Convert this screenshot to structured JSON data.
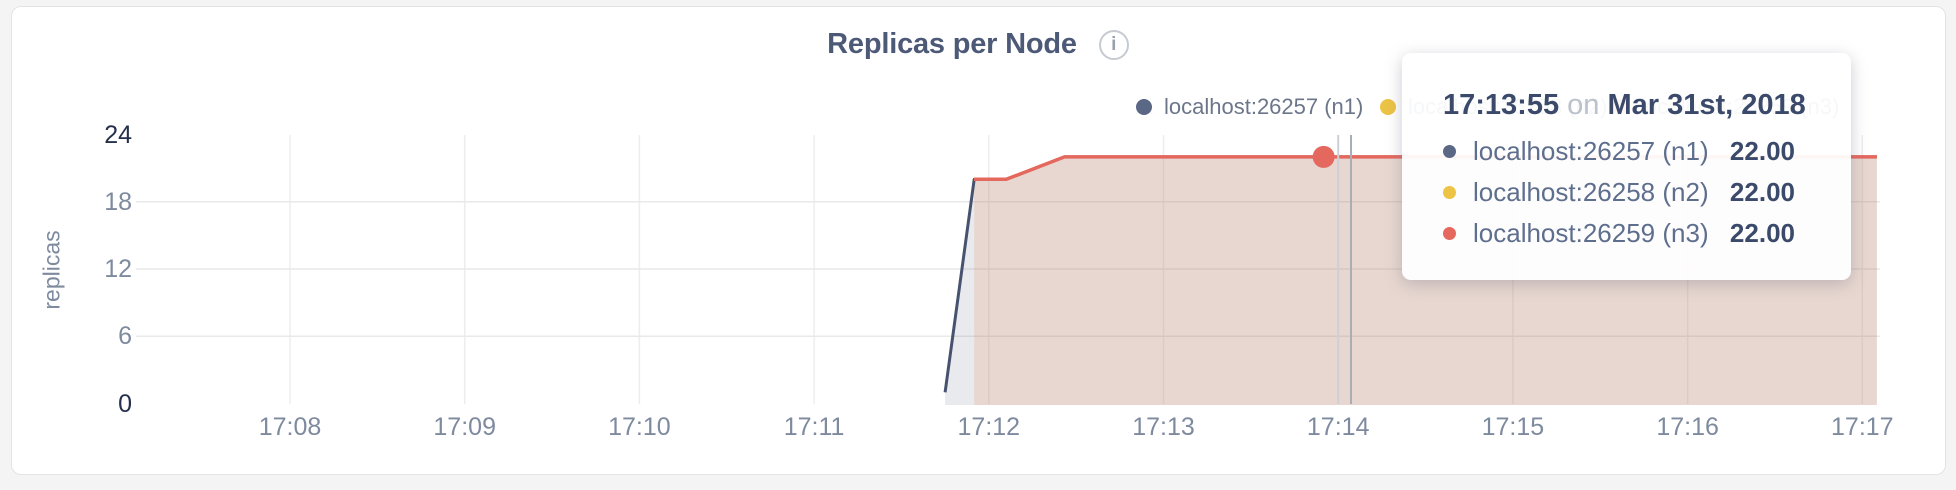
{
  "icons": {
    "info": "i"
  },
  "colors": {
    "n1_navy": "#5a6785",
    "n1_line": "#47536e",
    "n2_yellow": "#ecc344",
    "n3_red": "#e5685f",
    "title": "#4d5a77",
    "axis_dark": "#25304b",
    "axis_light": "#7e8a9e"
  },
  "chart": {
    "title": "Replicas per Node",
    "ylabel": "replicas",
    "x_ticks": [
      "17:08",
      "17:09",
      "17:10",
      "17:11",
      "17:12",
      "17:13",
      "17:14",
      "17:15",
      "17:16",
      "17:17"
    ],
    "y_ticks": [
      0,
      6,
      12,
      18,
      24
    ],
    "legend": [
      {
        "label": "localhost:26257 (n1)",
        "color": "#5a6785"
      },
      {
        "label": "localhost:26258 (n2)",
        "color": "#ecc344"
      },
      {
        "label": "localhost:26259 (n3)",
        "color": "#e5685f"
      }
    ]
  },
  "tooltip": {
    "time": "17:13:55",
    "conj": "on",
    "date": "Mar 31st, 2018",
    "rows": [
      {
        "label": "localhost:26257 (n1)",
        "value": "22.00",
        "color": "#5a6785"
      },
      {
        "label": "localhost:26258 (n2)",
        "value": "22.00",
        "color": "#ecc344"
      },
      {
        "label": "localhost:26259 (n3)",
        "value": "22.00",
        "color": "#e5685f"
      }
    ]
  },
  "chart_data": {
    "type": "area",
    "title": "Replicas per Node",
    "xlabel": "",
    "ylabel": "replicas",
    "ylim": [
      0,
      24
    ],
    "y_ticks": [
      0,
      6,
      12,
      18,
      24
    ],
    "x_ticks": [
      "17:08",
      "17:09",
      "17:10",
      "17:11",
      "17:12",
      "17:13",
      "17:14",
      "17:15",
      "17:16",
      "17:17"
    ],
    "grid": true,
    "legend_position": "top-right",
    "series": [
      {
        "name": "localhost:26257 (n1)",
        "color": "#47536e",
        "points": [
          [
            "17:11:45",
            1
          ],
          [
            "17:11:55",
            20
          ],
          [
            "17:12:06",
            20
          ],
          [
            "17:12:26",
            22
          ],
          [
            "17:13:55",
            22
          ],
          [
            "17:17:05",
            22
          ]
        ]
      },
      {
        "name": "localhost:26258 (n2)",
        "color": "#ecc344",
        "points": [
          [
            "17:11:55",
            20
          ],
          [
            "17:12:06",
            20
          ],
          [
            "17:12:26",
            22
          ],
          [
            "17:13:55",
            22
          ],
          [
            "17:17:05",
            22
          ]
        ]
      },
      {
        "name": "localhost:26259 (n3)",
        "color": "#e5685f",
        "points": [
          [
            "17:11:55",
            20
          ],
          [
            "17:12:06",
            20
          ],
          [
            "17:12:26",
            22
          ],
          [
            "17:13:55",
            22
          ],
          [
            "17:17:05",
            22
          ]
        ]
      }
    ],
    "hover": {
      "time": "17:13:55",
      "date": "Mar 31st, 2018",
      "values": [
        22,
        22,
        22
      ],
      "highlighted_series": "localhost:26259 (n3)"
    }
  }
}
